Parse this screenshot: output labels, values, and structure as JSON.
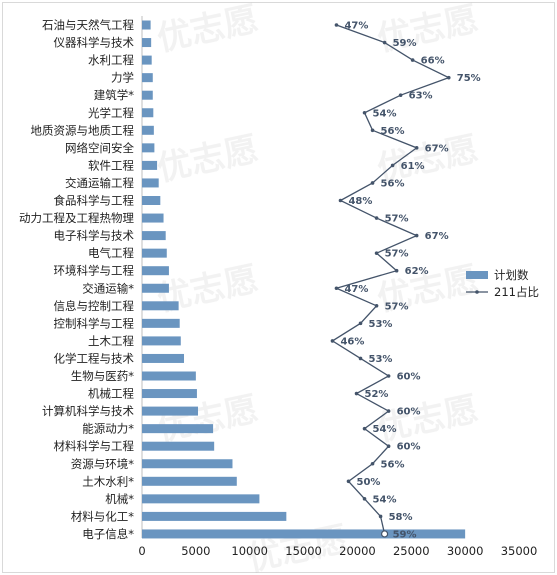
{
  "chart_data": {
    "type": "bar+line",
    "categories": [
      "石油与天然气工程",
      "仪器科学与技术",
      "水利工程",
      "力学",
      "建筑学*",
      "光学工程",
      "地质资源与地质工程",
      "网络空间安全",
      "软件工程",
      "交通运输工程",
      "食品科学与工程",
      "动力工程及工程热物理",
      "电子科学与技术",
      "电气工程",
      "环境科学与工程",
      "交通运输*",
      "信息与控制工程",
      "控制科学与工程",
      "土木工程",
      "化学工程与技术",
      "生物与医药*",
      "机械工程",
      "计算机科学与技术",
      "能源动力*",
      "材料科学与工程",
      "资源与环境*",
      "土木水利*",
      "机械*",
      "材料与化工*",
      "电子信息*"
    ],
    "series": [
      {
        "name": "计划数",
        "type": "bar",
        "color": "#6a95c0",
        "values": [
          800,
          850,
          900,
          1000,
          1000,
          1050,
          1100,
          1150,
          1400,
          1550,
          1700,
          2000,
          2200,
          2300,
          2500,
          2500,
          3400,
          3500,
          3600,
          3900,
          5000,
          5100,
          5200,
          6600,
          6700,
          8400,
          8800,
          10900,
          13400,
          30000
        ]
      },
      {
        "name": "211占比",
        "type": "line",
        "color": "#44546a",
        "values": [
          47,
          59,
          66,
          75,
          63,
          54,
          56,
          67,
          61,
          56,
          48,
          57,
          67,
          57,
          62,
          47,
          57,
          53,
          46,
          53,
          60,
          52,
          60,
          54,
          60,
          56,
          50,
          54,
          58,
          59
        ],
        "labels": [
          "47%",
          "59%",
          "66%",
          "75%",
          "63%",
          "54%",
          "56%",
          "67%",
          "61%",
          "56%",
          "48%",
          "57%",
          "67%",
          "57%",
          "62%",
          "47%",
          "57%",
          "53%",
          "46%",
          "53%",
          "60%",
          "52%",
          "60%",
          "54%",
          "60%",
          "56%",
          "50%",
          "54%",
          "58%",
          "59%"
        ]
      }
    ],
    "x_ticks": [
      "0",
      "5000",
      "10000",
      "15000",
      "20000",
      "25000",
      "30000",
      "35000"
    ],
    "xlim": [
      0,
      35000
    ],
    "legend": {
      "position": "right",
      "items": [
        "计划数",
        "211占比"
      ]
    },
    "watermark": "优志愿",
    "grid": false
  }
}
